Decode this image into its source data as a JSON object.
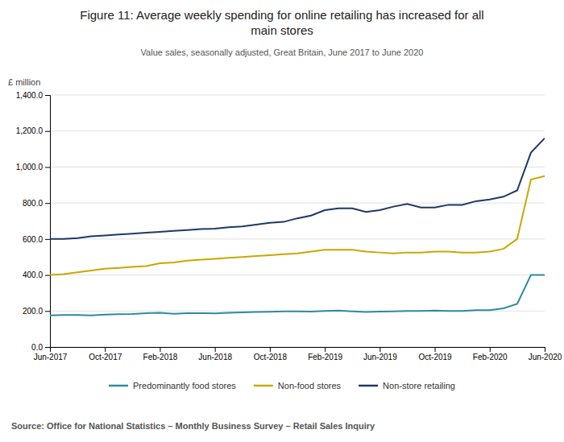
{
  "chart_data": {
    "type": "line",
    "title": "Figure 11: Average weekly spending for online retailing has increased for all\nmain stores",
    "subtitle": "Value sales, seasonally adjusted, Great Britain, June 2017 to June 2020",
    "ylabel": "£ million",
    "source": "Source: Office for National Statistics – Monthly Business Survey – Retail Sales Inquiry",
    "categories": [
      "Jun-2017",
      null,
      null,
      null,
      "Oct-2017",
      null,
      null,
      null,
      "Feb-2018",
      null,
      null,
      null,
      "Jun-2018",
      null,
      null,
      null,
      "Oct-2018",
      null,
      null,
      null,
      "Feb-2019",
      null,
      null,
      null,
      "Jun-2019",
      null,
      null,
      null,
      "Oct-2019",
      null,
      null,
      null,
      "Feb-2020",
      null,
      null,
      null,
      "Jun-2020"
    ],
    "ylim": [
      0,
      1400
    ],
    "yticks": [
      {
        "value": 0,
        "label": "0.0"
      },
      {
        "value": 200,
        "label": "200.0"
      },
      {
        "value": 400,
        "label": "400.0"
      },
      {
        "value": 600,
        "label": "600.0"
      },
      {
        "value": 800,
        "label": "800.0"
      },
      {
        "value": 1000,
        "label": "1,000.0"
      },
      {
        "value": 1200,
        "label": "1,200.0"
      },
      {
        "value": 1400,
        "label": "1,400.0"
      }
    ],
    "grid": true,
    "legend": "bottom",
    "series": [
      {
        "name": "Predominantly food stores",
        "color": "#2e8b9a",
        "values": [
          175,
          178,
          178,
          176,
          180,
          182,
          183,
          188,
          190,
          185,
          188,
          188,
          187,
          190,
          192,
          195,
          196,
          198,
          198,
          197,
          200,
          202,
          198,
          195,
          197,
          198,
          200,
          200,
          202,
          200,
          200,
          205,
          205,
          215,
          240,
          400,
          400
        ]
      },
      {
        "name": "Non-food stores",
        "color": "#c8a800",
        "values": [
          400,
          405,
          415,
          425,
          435,
          440,
          445,
          450,
          465,
          470,
          480,
          485,
          490,
          495,
          500,
          505,
          510,
          515,
          520,
          530,
          540,
          540,
          540,
          530,
          525,
          520,
          525,
          525,
          530,
          530,
          525,
          525,
          530,
          545,
          600,
          930,
          950
        ]
      },
      {
        "name": "Non-store retailing",
        "color": "#1f3864",
        "values": [
          600,
          600,
          605,
          615,
          620,
          625,
          630,
          635,
          640,
          645,
          650,
          655,
          658,
          665,
          670,
          680,
          690,
          695,
          715,
          730,
          760,
          770,
          770,
          750,
          760,
          780,
          795,
          775,
          775,
          790,
          790,
          810,
          820,
          835,
          870,
          1080,
          1160
        ]
      }
    ]
  }
}
